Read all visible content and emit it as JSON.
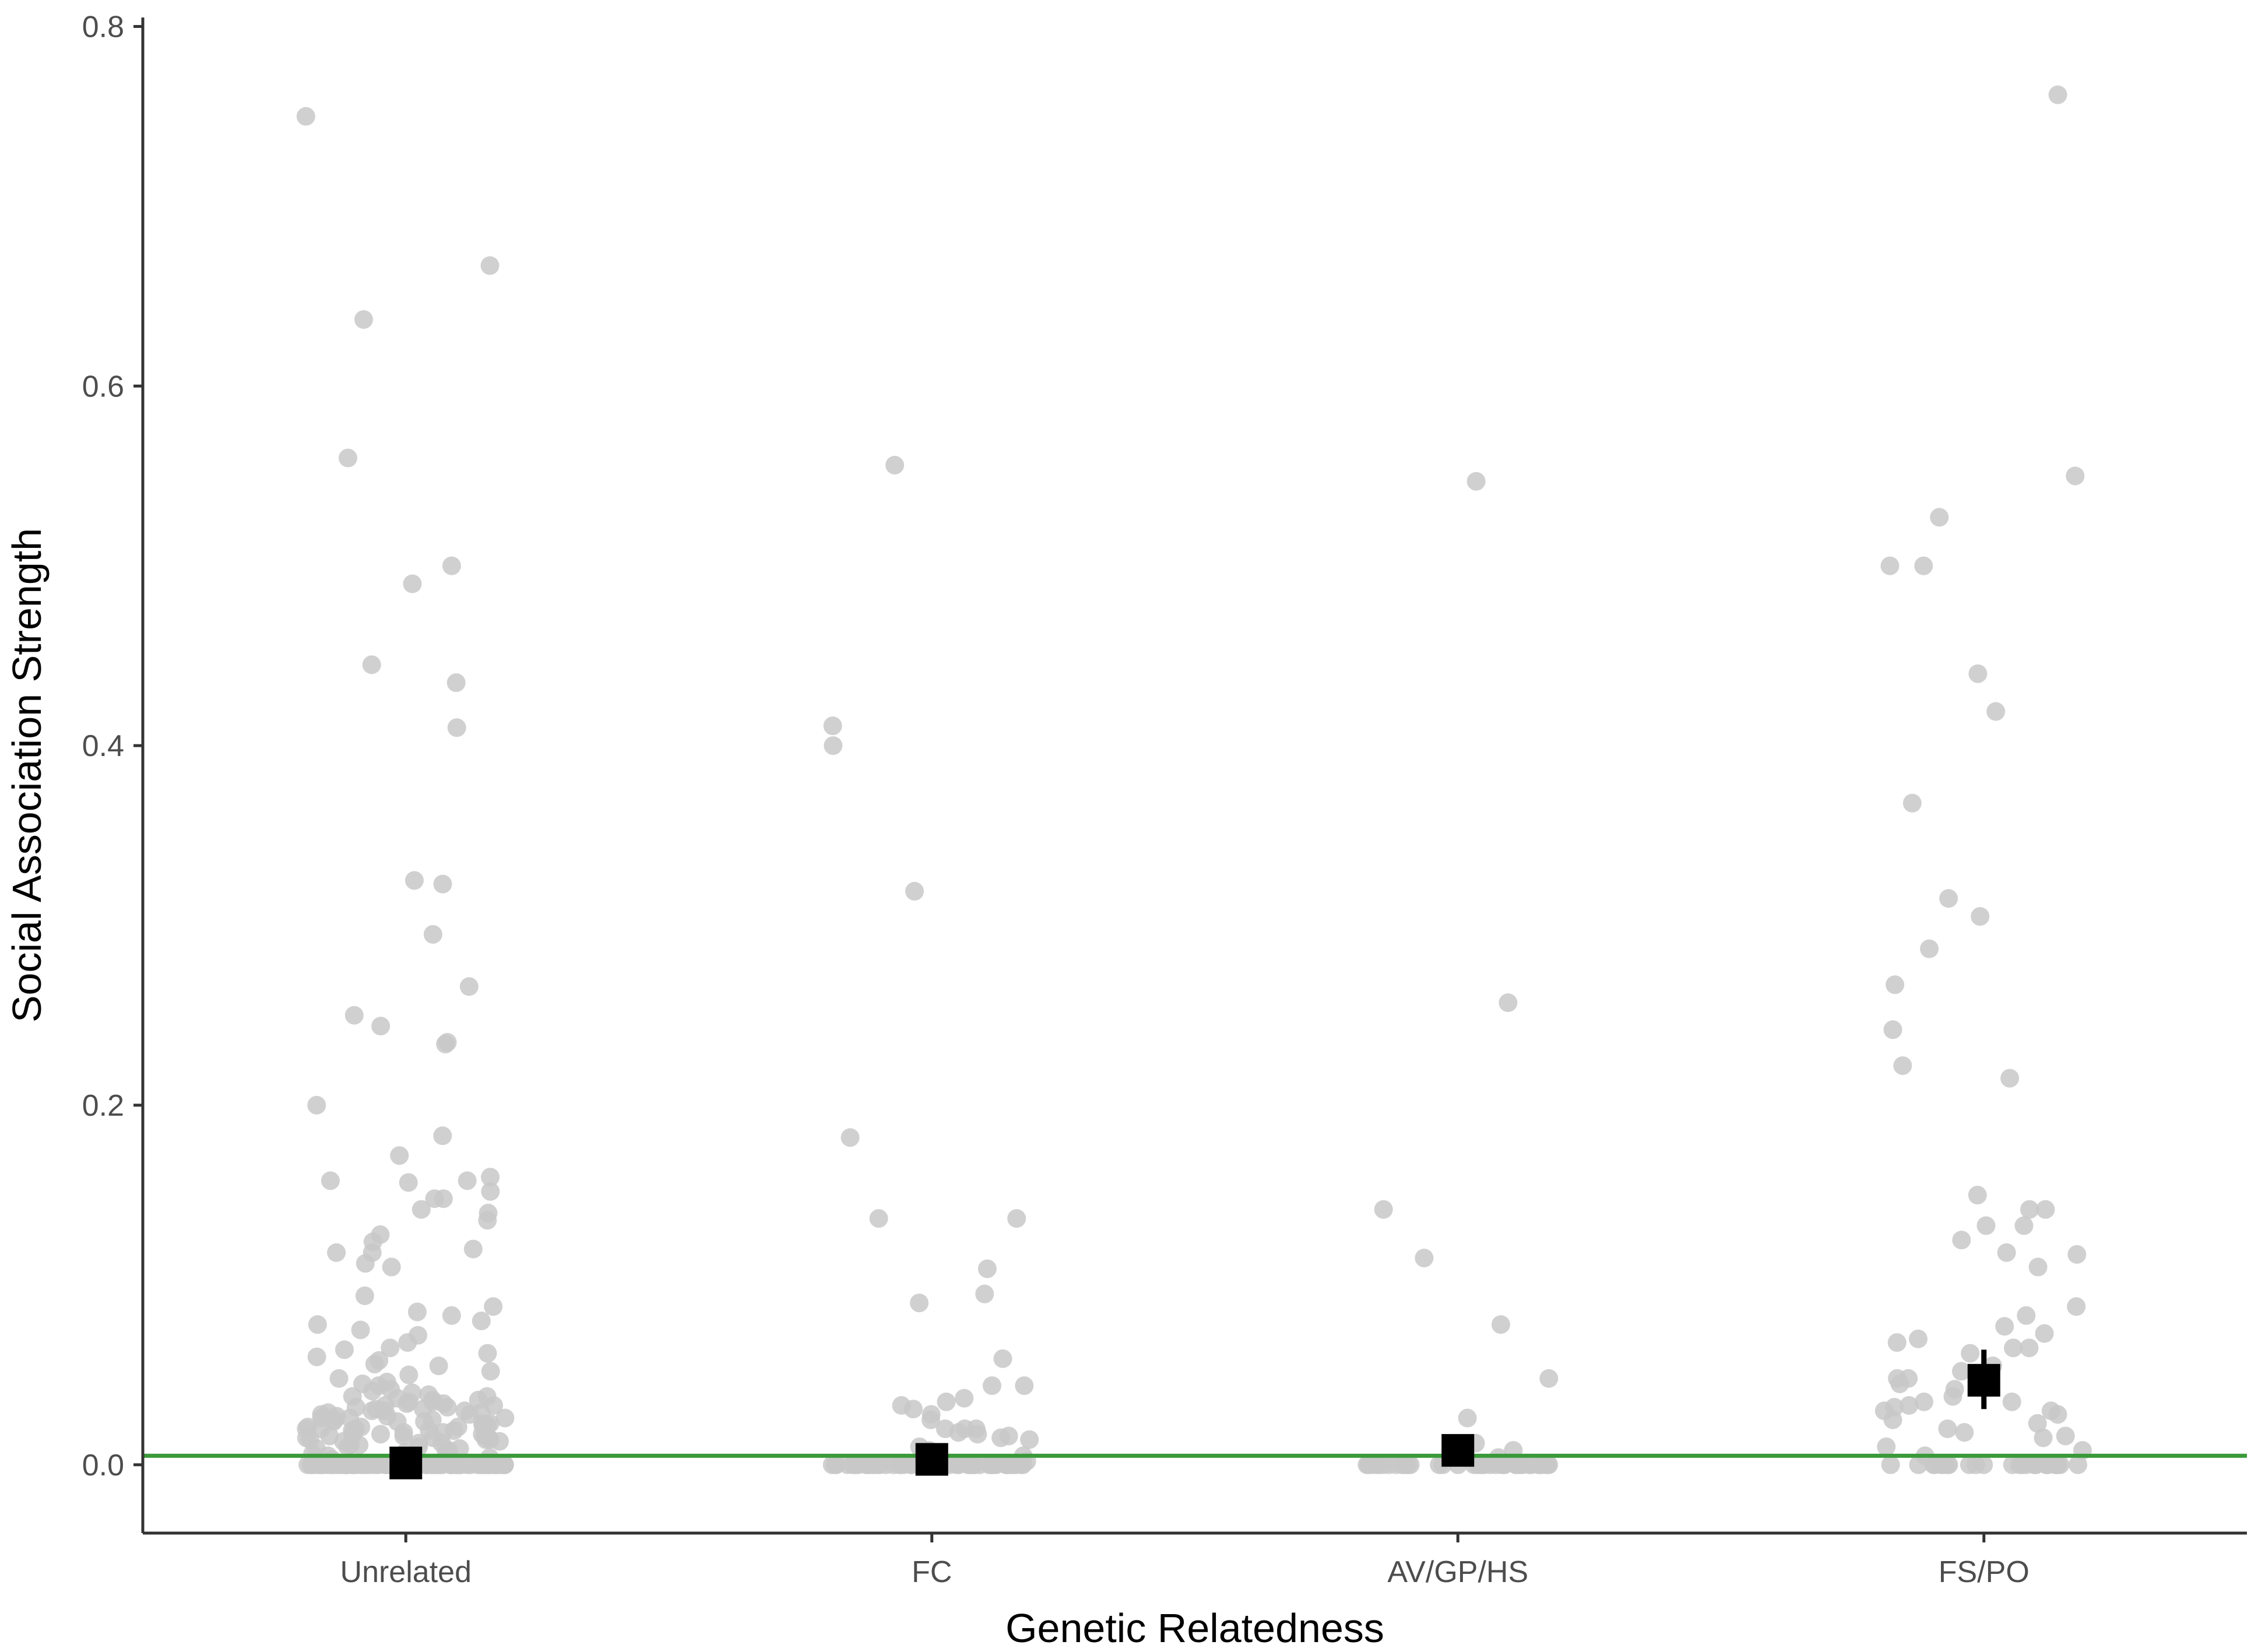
{
  "chart_data": {
    "type": "scatter",
    "title": "",
    "xlabel": "Genetic Relatedness",
    "ylabel": "Social Association Strength",
    "categories": [
      "Unrelated",
      "FC",
      "AV/GP/HS",
      "FS/PO"
    ],
    "ylim": [
      -0.038,
      0.805
    ],
    "yticks": [
      0.0,
      0.2,
      0.4,
      0.6,
      0.8
    ],
    "ytick_labels": [
      "0.0",
      "0.2",
      "0.4",
      "0.6",
      "0.8"
    ],
    "grid": false,
    "legend": "none",
    "reference_line": {
      "y": 0.005,
      "color": "#3a9a3a"
    },
    "colors": {
      "points": "#c8c8c8",
      "summary": "#000000",
      "axis": "#333333"
    },
    "points": [
      {
        "category": "Unrelated",
        "y": [
          0.75,
          0.667,
          0.637,
          0.56,
          0.5,
          0.49,
          0.445,
          0.435,
          0.41,
          0.325,
          0.323,
          0.295,
          0.266,
          0.25,
          0.244,
          0.235,
          0.234,
          0.2,
          0.183,
          0.172,
          0.16,
          0.158,
          0.158,
          0.157,
          0.152,
          0.148,
          0.148,
          0.142,
          0.14,
          0.136,
          0.128,
          0.124,
          0.12,
          0.118,
          0.118,
          0.112,
          0.11,
          0.094,
          0.088,
          0.085,
          0.083,
          0.08,
          0.078,
          0.075,
          0.072,
          0.068,
          0.065,
          0.064,
          0.062,
          0.06,
          0.058,
          0.056,
          0.055,
          0.052,
          0.05,
          0.048,
          0.046,
          0.045,
          0.044,
          0.042,
          0.041,
          0.04,
          0.039,
          0.038,
          0.038,
          0.037,
          0.036,
          0.036,
          0.035,
          0.035,
          0.034,
          0.034,
          0.033,
          0.033,
          0.032,
          0.032,
          0.031,
          0.031,
          0.03,
          0.03,
          0.03,
          0.029,
          0.029,
          0.028,
          0.028,
          0.027,
          0.027,
          0.026,
          0.026,
          0.026,
          0.025,
          0.025,
          0.024,
          0.024,
          0.024,
          0.023,
          0.023,
          0.022,
          0.022,
          0.022,
          0.021,
          0.021,
          0.021,
          0.02,
          0.02,
          0.02,
          0.019,
          0.019,
          0.019,
          0.018,
          0.018,
          0.018,
          0.017,
          0.017,
          0.017,
          0.016,
          0.016,
          0.016,
          0.015,
          0.015,
          0.015,
          0.014,
          0.014,
          0.014,
          0.013,
          0.013,
          0.012,
          0.012,
          0.011,
          0.011,
          0.01,
          0.01,
          0.009,
          0.009,
          0.008,
          0.008,
          0.007,
          0.006,
          0.005,
          0.004,
          0.003,
          0.002,
          0.001,
          0,
          0,
          0,
          0,
          0,
          0,
          0,
          0,
          0,
          0,
          0,
          0,
          0,
          0,
          0,
          0,
          0,
          0,
          0,
          0,
          0,
          0,
          0,
          0,
          0,
          0,
          0,
          0,
          0,
          0,
          0,
          0,
          0,
          0,
          0,
          0,
          0,
          0,
          0,
          0,
          0,
          0,
          0,
          0,
          0,
          0,
          0,
          0,
          0,
          0,
          0,
          0,
          0,
          0,
          0,
          0,
          0,
          0,
          0,
          0,
          0,
          0,
          0,
          0,
          0,
          0,
          0,
          0,
          0,
          0,
          0,
          0,
          0,
          0,
          0,
          0,
          0,
          0,
          0,
          0,
          0,
          0,
          0,
          0,
          0,
          0,
          0,
          0,
          0,
          0,
          0,
          0,
          0,
          0,
          0,
          0,
          0,
          0,
          0,
          0,
          0,
          0,
          0,
          0,
          0,
          0
        ]
      },
      {
        "category": "FC",
        "y": [
          0.556,
          0.411,
          0.4,
          0.319,
          0.182,
          0.137,
          0.137,
          0.109,
          0.095,
          0.09,
          0.059,
          0.044,
          0.044,
          0.037,
          0.035,
          0.033,
          0.031,
          0.028,
          0.025,
          0.02,
          0.02,
          0.02,
          0.018,
          0.017,
          0.016,
          0.015,
          0.014,
          0.01,
          0.008,
          0.005,
          0.002,
          0,
          0,
          0,
          0,
          0,
          0,
          0,
          0,
          0,
          0,
          0,
          0,
          0,
          0,
          0,
          0,
          0,
          0,
          0,
          0,
          0,
          0,
          0,
          0,
          0,
          0,
          0,
          0,
          0,
          0,
          0,
          0,
          0,
          0,
          0,
          0,
          0,
          0,
          0,
          0,
          0,
          0,
          0,
          0,
          0,
          0,
          0,
          0,
          0,
          0,
          0
        ]
      },
      {
        "category": "AV/GP/HS",
        "y": [
          0.547,
          0.257,
          0.142,
          0.115,
          0.078,
          0.048,
          0.026,
          0.012,
          0.008,
          0.004,
          0,
          0,
          0,
          0,
          0,
          0,
          0,
          0,
          0,
          0,
          0,
          0,
          0,
          0,
          0,
          0,
          0,
          0,
          0,
          0,
          0,
          0,
          0,
          0,
          0,
          0,
          0,
          0,
          0,
          0,
          0,
          0,
          0,
          0,
          0,
          0,
          0,
          0,
          0,
          0
        ]
      },
      {
        "category": "FS/PO",
        "y": [
          0.762,
          0.55,
          0.527,
          0.5,
          0.5,
          0.44,
          0.419,
          0.368,
          0.315,
          0.305,
          0.287,
          0.267,
          0.242,
          0.222,
          0.215,
          0.15,
          0.142,
          0.142,
          0.133,
          0.133,
          0.125,
          0.118,
          0.117,
          0.11,
          0.088,
          0.083,
          0.077,
          0.073,
          0.07,
          0.068,
          0.065,
          0.065,
          0.062,
          0.055,
          0.052,
          0.05,
          0.048,
          0.048,
          0.045,
          0.042,
          0.038,
          0.035,
          0.035,
          0.033,
          0.032,
          0.03,
          0.03,
          0.028,
          0.025,
          0.023,
          0.02,
          0.018,
          0.016,
          0.015,
          0.01,
          0.008,
          0.005,
          0,
          0,
          0,
          0,
          0,
          0,
          0,
          0,
          0,
          0,
          0,
          0,
          0,
          0,
          0,
          0,
          0,
          0,
          0,
          0,
          0,
          0,
          0,
          0,
          0,
          0,
          0
        ]
      }
    ],
    "summary": [
      {
        "category": "Unrelated",
        "mean": 0.001,
        "lower": -0.004,
        "upper": 0.006
      },
      {
        "category": "FC",
        "mean": 0.003,
        "lower": -0.003,
        "upper": 0.009
      },
      {
        "category": "AV/GP/HS",
        "mean": 0.008,
        "lower": 0.0,
        "upper": 0.016
      },
      {
        "category": "FS/PO",
        "mean": 0.047,
        "lower": 0.031,
        "upper": 0.064
      }
    ]
  }
}
